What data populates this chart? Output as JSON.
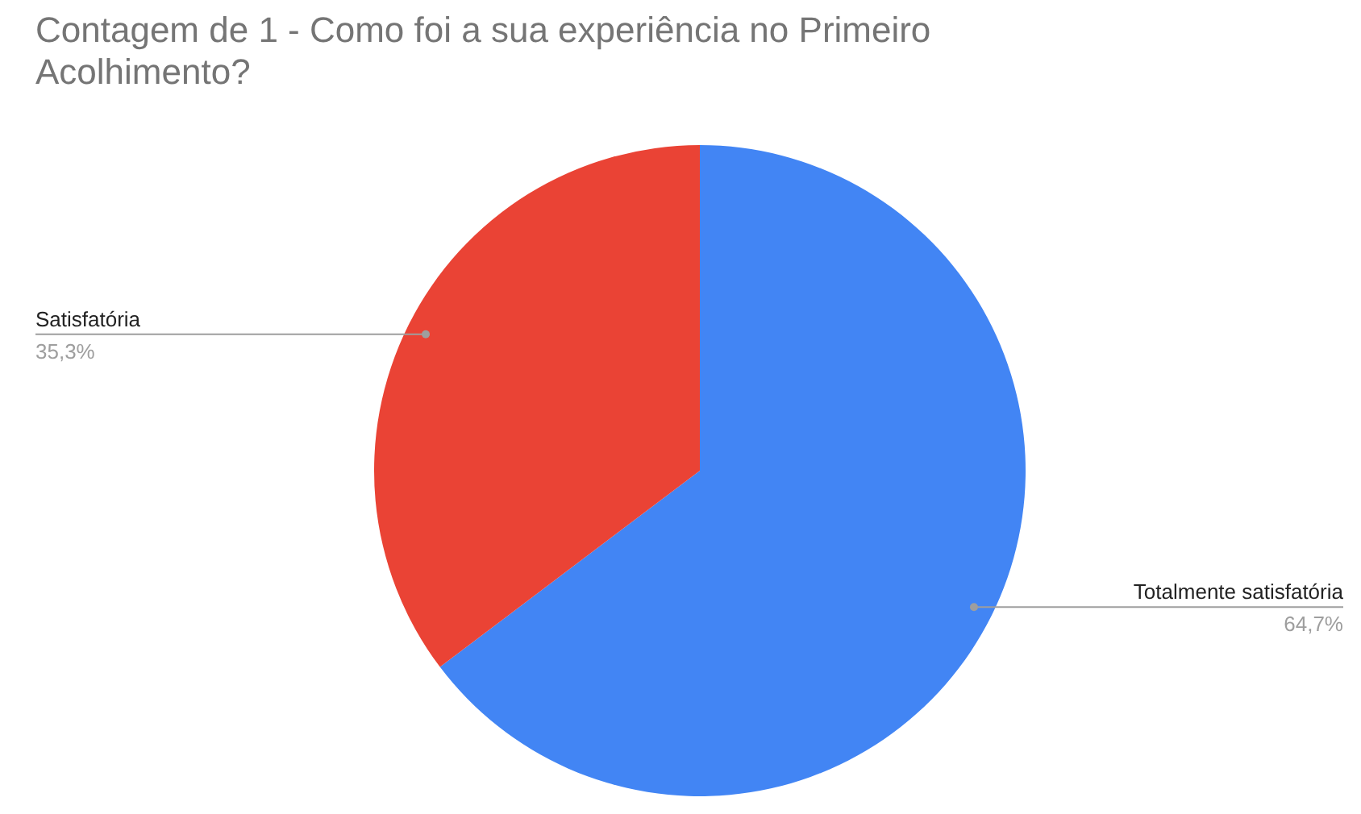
{
  "chart_data": {
    "type": "pie",
    "title": "Contagem de 1 - Como foi a sua experiência no Primeiro Acolhimento?",
    "categories": [
      "Totalmente satisfatória",
      "Satisfatória"
    ],
    "values": [
      64.7,
      35.3
    ],
    "colors": [
      "#4285f4",
      "#ea4335"
    ],
    "value_labels": [
      "64,7%",
      "35,3%"
    ]
  }
}
